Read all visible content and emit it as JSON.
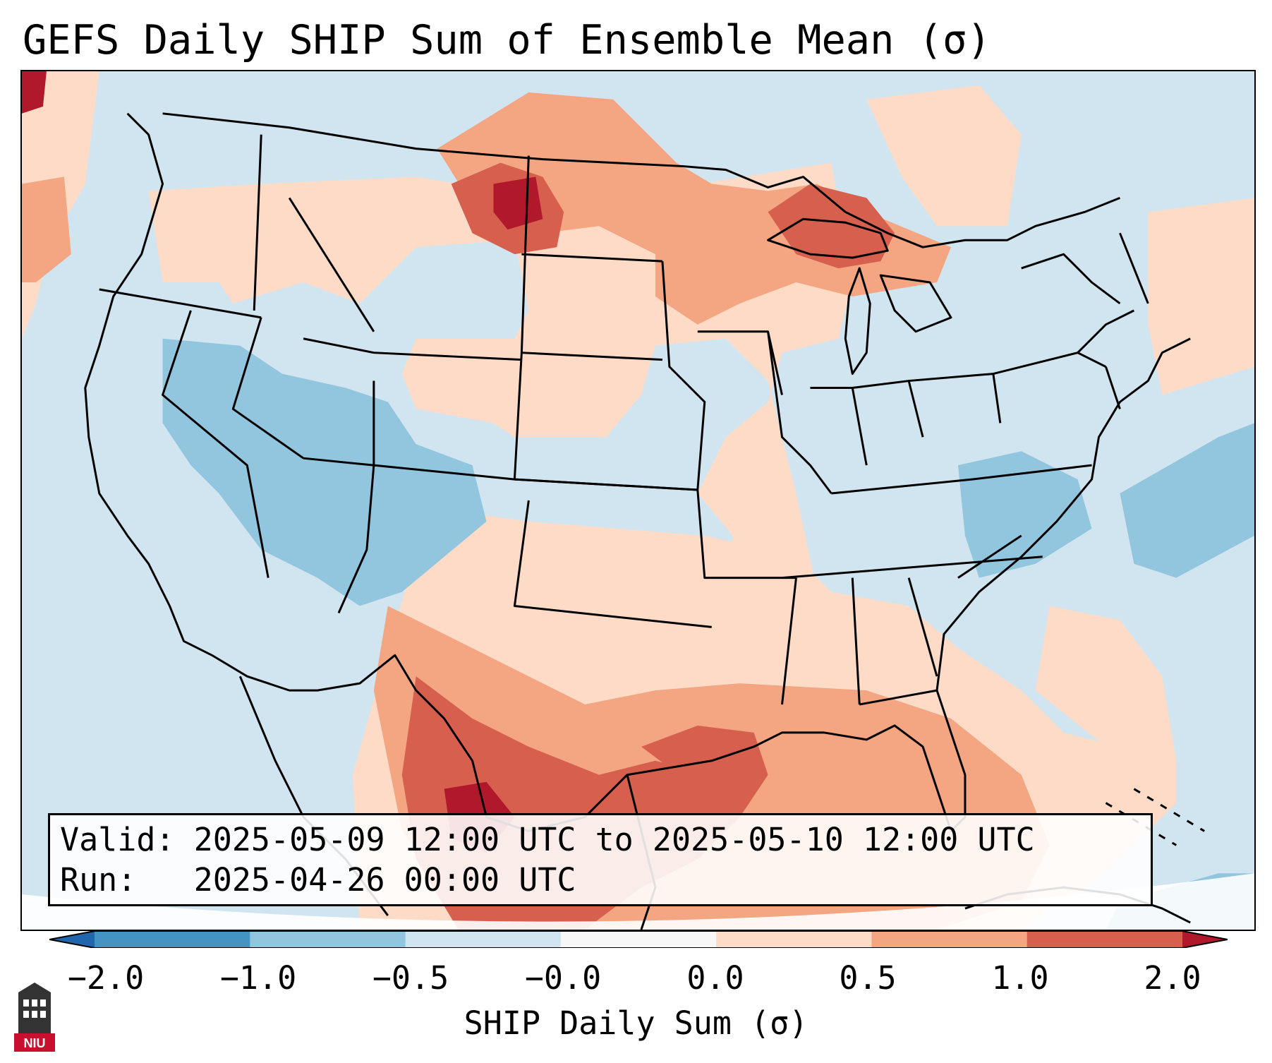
{
  "title": "GEFS Daily SHIP Sum of Ensemble Mean (σ)",
  "info": {
    "valid": "Valid: 2025-05-09 12:00 UTC to 2025-05-10 12:00 UTC",
    "run": "Run:   2025-04-26 00:00 UTC"
  },
  "colorbar": {
    "label": "SHIP Daily Sum (σ)",
    "ticks": [
      "−2.0",
      "−1.0",
      "−0.5",
      "−0.0",
      "0.0",
      "0.5",
      "1.0",
      "2.0"
    ],
    "colors": [
      "#2166ac",
      "#4393c3",
      "#92c5de",
      "#d1e5f0",
      "#f7f7f7",
      "#fddbc7",
      "#f4a582",
      "#d6604d",
      "#b2182b"
    ],
    "extend": "both"
  },
  "logo": {
    "text": "NIU",
    "icon": "university-tower-icon"
  }
}
